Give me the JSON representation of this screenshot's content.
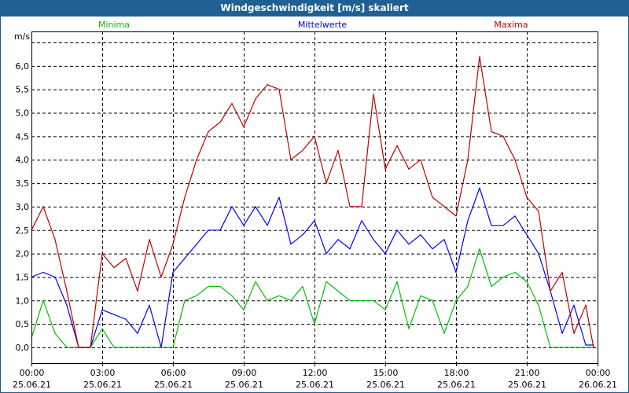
{
  "window": {
    "title": "Windgeschwindigkeit [m/s] skaliert"
  },
  "chart_data": {
    "type": "line",
    "title": "Windgeschwindigkeit [m/s] skaliert",
    "ylabel": "m/s",
    "xlabel": "",
    "ylim": [
      0,
      6.5
    ],
    "xlim_hours": [
      0,
      24
    ],
    "grid": true,
    "legend_placement": "top",
    "y_ticks": [
      "0,0",
      "0,5",
      "1,0",
      "1,5",
      "2,0",
      "2,5",
      "3,0",
      "3,5",
      "4,0",
      "4,5",
      "5,0",
      "5,5",
      "6,0"
    ],
    "x_ticks": [
      {
        "time": "00:00",
        "date": "25.06.21"
      },
      {
        "time": "03:00",
        "date": "25.06.21"
      },
      {
        "time": "06:00",
        "date": "25.06.21"
      },
      {
        "time": "09:00",
        "date": "25.06.21"
      },
      {
        "time": "12:00",
        "date": "25.06.21"
      },
      {
        "time": "15:00",
        "date": "25.06.21"
      },
      {
        "time": "18:00",
        "date": "25.06.21"
      },
      {
        "time": "21:00",
        "date": "25.06.21"
      },
      {
        "time": "00:00",
        "date": "26.06.21"
      }
    ],
    "x_hours": [
      0,
      0.5,
      1,
      1.5,
      2,
      2.5,
      3,
      3.5,
      4,
      4.5,
      5,
      5.5,
      6,
      6.5,
      7,
      7.5,
      8,
      8.5,
      9,
      9.5,
      10,
      10.5,
      11,
      11.5,
      12,
      12.5,
      13,
      13.5,
      14,
      14.5,
      15,
      15.5,
      16,
      16.5,
      17,
      17.5,
      18,
      18.5,
      19,
      19.5,
      20,
      20.5,
      21,
      21.5,
      22,
      22.5,
      23,
      23.5,
      23.83
    ],
    "series": [
      {
        "name": "Minima",
        "color": "#00c000",
        "values": [
          0.2,
          1.0,
          0.3,
          0,
          0,
          0,
          0.4,
          0,
          0,
          0,
          0,
          0,
          0,
          1.0,
          1.1,
          1.3,
          1.3,
          1.1,
          0.8,
          1.4,
          1.0,
          1.1,
          1.0,
          1.3,
          0.5,
          1.4,
          1.2,
          1.0,
          1.0,
          1.0,
          0.8,
          1.4,
          0.4,
          1.1,
          1.0,
          0.3,
          1.0,
          1.3,
          2.1,
          1.3,
          1.5,
          1.6,
          1.4,
          0.9,
          0,
          0,
          0,
          0,
          0
        ]
      },
      {
        "name": "Mittelwerte",
        "color": "#0000ff",
        "values": [
          1.5,
          1.6,
          1.5,
          0.9,
          0,
          0,
          0.8,
          0.7,
          0.6,
          0.3,
          0.9,
          0,
          1.6,
          1.9,
          2.2,
          2.5,
          2.5,
          3.0,
          2.6,
          3.0,
          2.6,
          3.2,
          2.2,
          2.4,
          2.7,
          2.0,
          2.3,
          2.1,
          2.7,
          2.3,
          2.0,
          2.5,
          2.2,
          2.4,
          2.1,
          2.3,
          1.6,
          2.7,
          3.4,
          2.6,
          2.6,
          2.8,
          2.4,
          2.0,
          1.2,
          0.3,
          0.9,
          0.05,
          0.05
        ]
      },
      {
        "name": "Maxima",
        "color": "#c00000",
        "values": [
          2.5,
          3.0,
          2.3,
          1.2,
          0,
          0,
          2.0,
          1.7,
          1.9,
          1.2,
          2.3,
          1.5,
          2.2,
          3.2,
          4.0,
          4.6,
          4.8,
          5.2,
          4.7,
          5.3,
          5.6,
          5.5,
          4.0,
          4.2,
          4.5,
          3.5,
          4.2,
          3.0,
          3.0,
          5.4,
          3.8,
          4.3,
          3.8,
          4.0,
          3.2,
          3.0,
          2.8,
          4.0,
          6.2,
          4.6,
          4.5,
          4.0,
          3.2,
          2.9,
          1.2,
          1.6,
          0.3,
          0.9,
          0
        ]
      }
    ]
  }
}
